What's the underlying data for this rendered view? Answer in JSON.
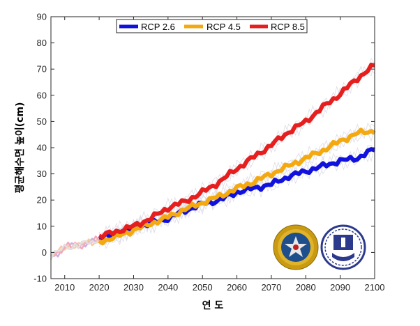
{
  "chart_data": {
    "type": "line",
    "xlabel": "연 도",
    "ylabel": "평균해수면 높이(cm)",
    "xlim": [
      2006,
      2100
    ],
    "ylim": [
      -10,
      90
    ],
    "xticks": [
      2010,
      2020,
      2030,
      2040,
      2050,
      2060,
      2070,
      2080,
      2090,
      2100
    ],
    "yticks": [
      -10,
      0,
      10,
      20,
      30,
      40,
      50,
      60,
      70,
      80,
      90
    ],
    "grid": false,
    "legend_position": "top-center",
    "historical": {
      "colors": [
        "#c8b0e0",
        "#f7c9a8",
        "#f5a8b8",
        "#e0e0e0"
      ],
      "x": [
        2006,
        2007,
        2008,
        2009,
        2010,
        2011,
        2012,
        2013,
        2014,
        2015,
        2016,
        2017,
        2018,
        2019,
        2020
      ],
      "values": [
        -1.5,
        -0.5,
        0,
        1,
        2,
        2.5,
        2,
        3,
        2.5,
        3,
        3.5,
        4,
        4,
        4.5,
        5
      ]
    },
    "series": [
      {
        "name": "RCP 2.6",
        "color": "#1111dd",
        "x": [
          2020,
          2025,
          2030,
          2035,
          2040,
          2045,
          2050,
          2055,
          2060,
          2065,
          2070,
          2075,
          2080,
          2085,
          2090,
          2095,
          2100
        ],
        "values": [
          5.5,
          7,
          9.5,
          11,
          13,
          16,
          18.5,
          20,
          23,
          24.5,
          26,
          29,
          31,
          33,
          35,
          36,
          39.5
        ]
      },
      {
        "name": "RCP 4.5",
        "color": "#f5a910",
        "x": [
          2020,
          2025,
          2030,
          2035,
          2040,
          2045,
          2050,
          2055,
          2060,
          2065,
          2070,
          2075,
          2080,
          2085,
          2090,
          2095,
          2100
        ],
        "values": [
          4,
          6,
          8.5,
          11,
          13.5,
          16.5,
          19,
          21.5,
          24.5,
          27,
          30,
          33,
          36,
          39,
          42.5,
          45.5,
          46.5
        ]
      },
      {
        "name": "RCP 8.5",
        "color": "#e61e1e",
        "x": [
          2020,
          2025,
          2030,
          2035,
          2040,
          2045,
          2050,
          2055,
          2060,
          2065,
          2070,
          2075,
          2080,
          2085,
          2090,
          2095,
          2100
        ],
        "values": [
          6,
          8,
          10,
          13,
          17,
          19.5,
          23,
          27,
          32,
          36.5,
          41,
          46,
          50,
          55.5,
          60.5,
          66.5,
          71.5
        ]
      }
    ]
  }
}
